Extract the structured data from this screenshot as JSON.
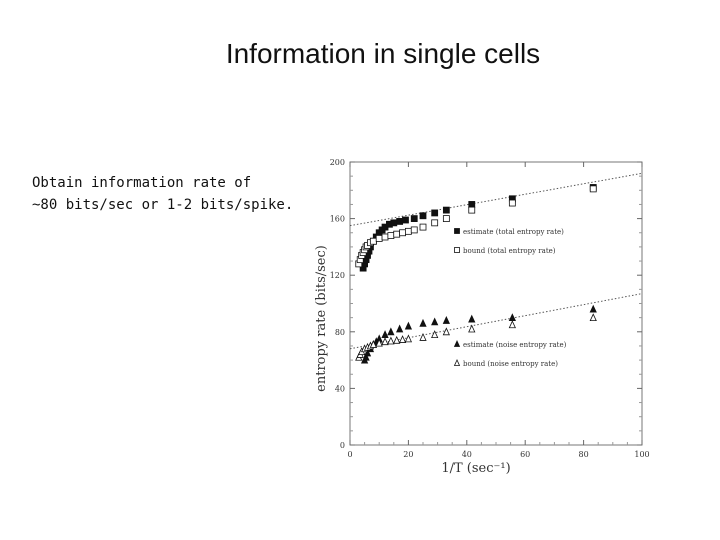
{
  "slide": {
    "title": "Information in single cells",
    "body_lines": [
      "Obtain information rate of",
      "~80 bits/sec or 1-2 bits/spike."
    ]
  },
  "chart_data": {
    "type": "scatter",
    "xlabel": "1/T (sec⁻¹)",
    "ylabel": "entropy rate (bits/sec)",
    "xlim": [
      0,
      100
    ],
    "ylim": [
      0,
      200
    ],
    "xticks": [
      0,
      20,
      40,
      60,
      80,
      100
    ],
    "yticks": [
      0,
      40,
      80,
      120,
      160,
      200
    ],
    "legend_position": "right",
    "series": [
      {
        "name": "estimate (total entropy rate)",
        "marker": "square-filled",
        "x": [
          4.5,
          5,
          5.5,
          6,
          6.5,
          7,
          8,
          9,
          10,
          11,
          12,
          13.5,
          15,
          17,
          19,
          22,
          25,
          29,
          33,
          41.7,
          55.6,
          83.3
        ],
        "y": [
          125,
          128,
          131,
          134,
          137,
          140,
          144,
          147,
          150,
          152,
          154,
          156,
          157,
          158,
          159,
          160,
          162,
          164,
          166,
          170,
          174,
          182
        ]
      },
      {
        "name": "bound (total entropy rate)",
        "marker": "square-open",
        "x": [
          3,
          3.5,
          4,
          4.5,
          5,
          5.5,
          6,
          7,
          8,
          10,
          12,
          14,
          16,
          18,
          20,
          22,
          25,
          29,
          33,
          41.7,
          55.6,
          83.3
        ],
        "y": [
          128,
          131,
          134,
          136,
          138,
          140,
          141,
          143,
          144,
          146,
          147,
          148,
          149,
          150,
          151,
          152,
          154,
          157,
          160,
          166,
          171,
          181
        ]
      },
      {
        "name": "estimate (noise entropy rate)",
        "marker": "triangle-filled",
        "x": [
          5,
          5.5,
          6,
          7,
          8,
          9,
          10,
          12,
          14,
          17,
          20,
          25,
          29,
          33,
          41.7,
          55.6,
          83.3
        ],
        "y": [
          60,
          62,
          65,
          68,
          71,
          73,
          75,
          78,
          80,
          82,
          84,
          86,
          87,
          88,
          89,
          90,
          96
        ]
      },
      {
        "name": "bound (noise entropy rate)",
        "marker": "triangle-open",
        "x": [
          3,
          3.5,
          4,
          5,
          6,
          7,
          8,
          10,
          12,
          14,
          16,
          18,
          20,
          25,
          29,
          33,
          41.7,
          55.6,
          83.3
        ],
        "y": [
          62,
          64,
          66,
          68,
          69,
          70,
          71,
          72,
          73,
          73.5,
          74,
          74.5,
          75,
          76,
          78,
          80,
          82,
          85,
          90
        ]
      }
    ],
    "fit_lines": [
      {
        "for": "total",
        "x": [
          0,
          100
        ],
        "y": [
          155,
          192
        ]
      },
      {
        "for": "noise",
        "x": [
          0,
          100
        ],
        "y": [
          68,
          107
        ]
      }
    ]
  }
}
